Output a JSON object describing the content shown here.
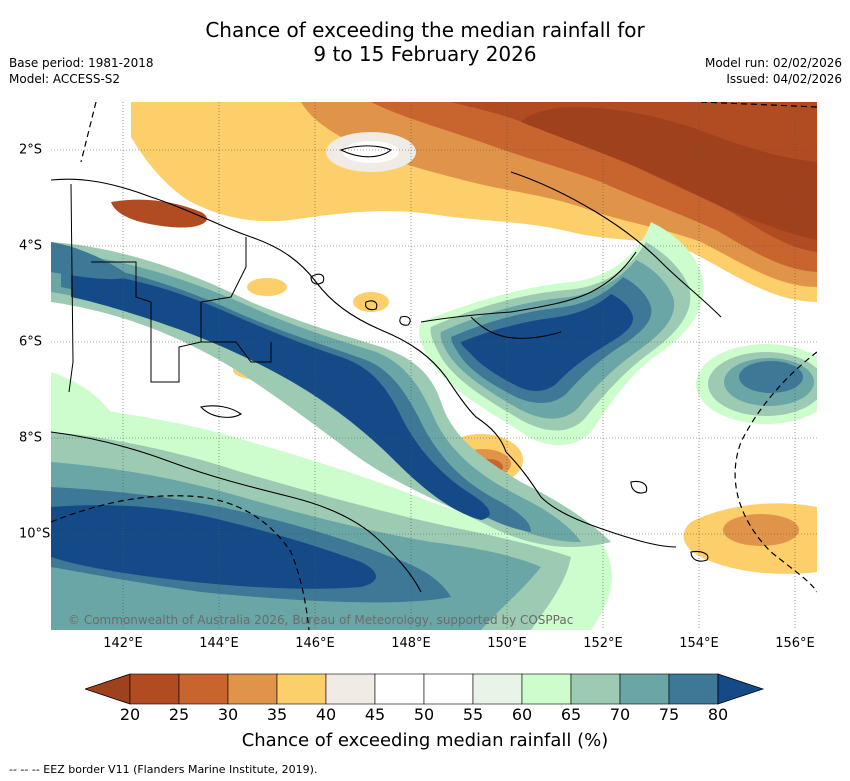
{
  "title": {
    "line1": "Chance of exceeding the median rainfall for",
    "line2": "9 to 15 February 2026"
  },
  "meta_left": {
    "base_period": "Base period: 1981-2018",
    "model": "Model: ACCESS-S2"
  },
  "meta_right": {
    "model_run": "Model run: 02/02/2026",
    "issued": "Issued: 04/02/2026"
  },
  "map": {
    "lon_ticks": [
      "142°E",
      "144°E",
      "146°E",
      "148°E",
      "150°E",
      "152°E",
      "154°E",
      "156°E"
    ],
    "lat_ticks": [
      "2°S",
      "4°S",
      "6°S",
      "8°S",
      "10°S"
    ],
    "copyright": "© Commonwealth of Australia 2026, Bureau of Meteorology, supported by COSPPac"
  },
  "colorbar": {
    "label": "Chance of exceeding median rainfall (%)",
    "ticks": [
      "20",
      "25",
      "30",
      "35",
      "40",
      "45",
      "50",
      "55",
      "60",
      "65",
      "70",
      "75",
      "80"
    ],
    "colors": [
      "#a0411d",
      "#b04b22",
      "#c8652f",
      "#e0944a",
      "#fdcf6a",
      "#f0ebe5",
      "#ffffff",
      "#ffffff",
      "#e8f4e8",
      "#cdfccd",
      "#9ccab3",
      "#6aa6a6",
      "#3d7896",
      "#154a88"
    ]
  },
  "footer": {
    "eez": "--  --  -- EEZ border V11 (Flanders Marine Institute, 2019)."
  }
}
